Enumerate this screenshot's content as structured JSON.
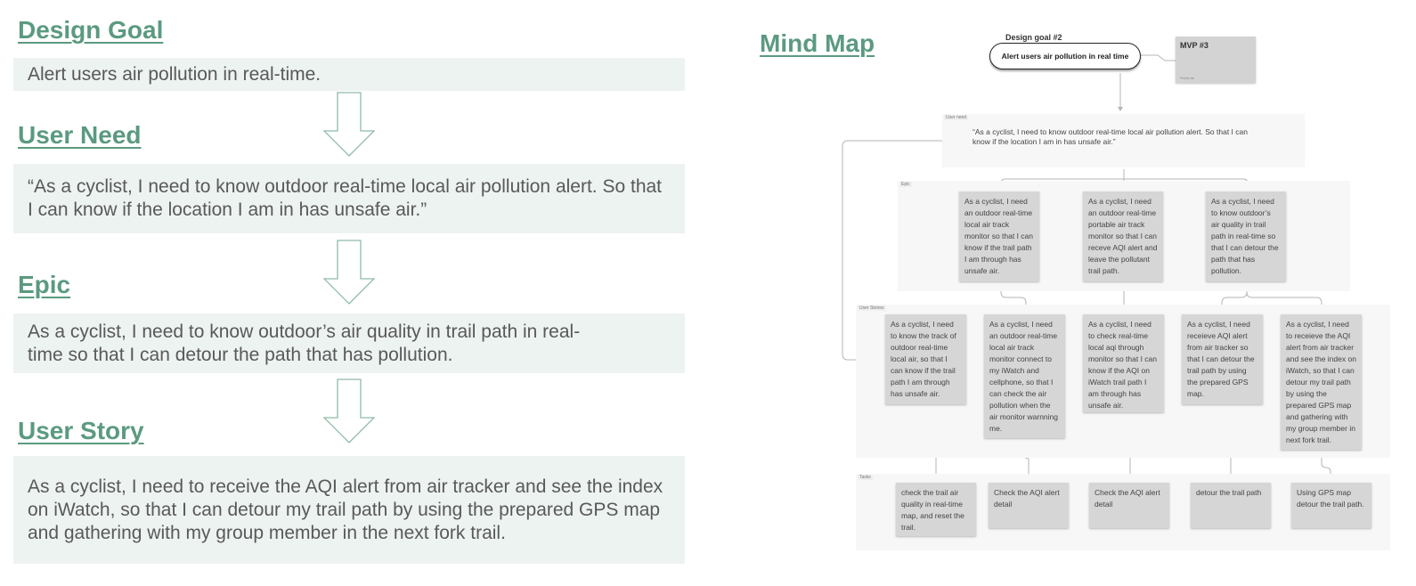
{
  "left": {
    "design_goal": {
      "heading": "Design Goal",
      "text": "Alert users air pollution in real-time."
    },
    "user_need": {
      "heading": "User Need",
      "text": "“As a cyclist, I need to know outdoor real-time local air pollution alert. So that I can know if the location I am in has unsafe air.”"
    },
    "epic": {
      "heading": "Epic",
      "text": "As a cyclist, I need to know outdoor’s air quality in trail path in real-time so that I can detour the path that has pollution."
    },
    "user_story": {
      "heading": "User Story",
      "text": "As a cyclist, I need to receive the AQI alert from air tracker and see the index on iWatch, so that I can detour my trail path by using the prepared GPS map and gathering with my group member in the next fork trail."
    }
  },
  "mind_map": {
    "heading": "Mind Map",
    "goal_label": "Design goal #2",
    "goal_text": "Alert users air pollution in real time",
    "mvp_label": "MVP #3",
    "mvp_sub": "Priority list",
    "user_need_tag": "User need",
    "user_need_text": "“As a cyclist, I need to know outdoor real-time local air pollution alert. So that I can know if the location I am in has unsafe air.”",
    "epic_tag": "Epic",
    "epics": [
      "As a cyclist, I need an outdoor real-time local air track monitor so that I can know if the trail path I am through has unsafe air.",
      "As a cyclist, I need an outdoor real-time portable air track monitor so that I can receve AQI alert and leave the pollutant trail path.",
      "As a cyclist, I need to know outdoor’s air quality in trail path in real-time so that I can detour the path that has pollution."
    ],
    "stories_tag": "User Stories",
    "stories": [
      "As a cyclist, I need to know the track of outdoor real-time local air, so that I can know if the trail path  I am through has unsafe air.",
      "As a cyclist, I need an outdoor real-time local air track monitor connect to my iWatch and cellphone, so that I can check the air pollution when the air monitor warnning me.",
      "As a cyclist, I need to check real-time local aqi through monitor so that I can know if the AQI on iWatch trail path  I am through has unsafe air.",
      "As a cyclist, I need receieve AQI alert from air tracker so that I can detour the trail path by using the prepared GPS map.",
      "As a cyclist, I need to receieve the AQI alert from air tracker and see the index on iWatch, so that I can detour my trail path by using the prepared GPS map and gathering with my group member in next fork trail."
    ],
    "tasks_tag": "Tasks",
    "tasks": [
      "check the trail air quality in real-time map, and reset the trail.",
      "Check the AQI alert detail",
      "Check the AQI alert detail",
      "detour the trail path",
      "Using GPS map detour the trail path."
    ]
  }
}
